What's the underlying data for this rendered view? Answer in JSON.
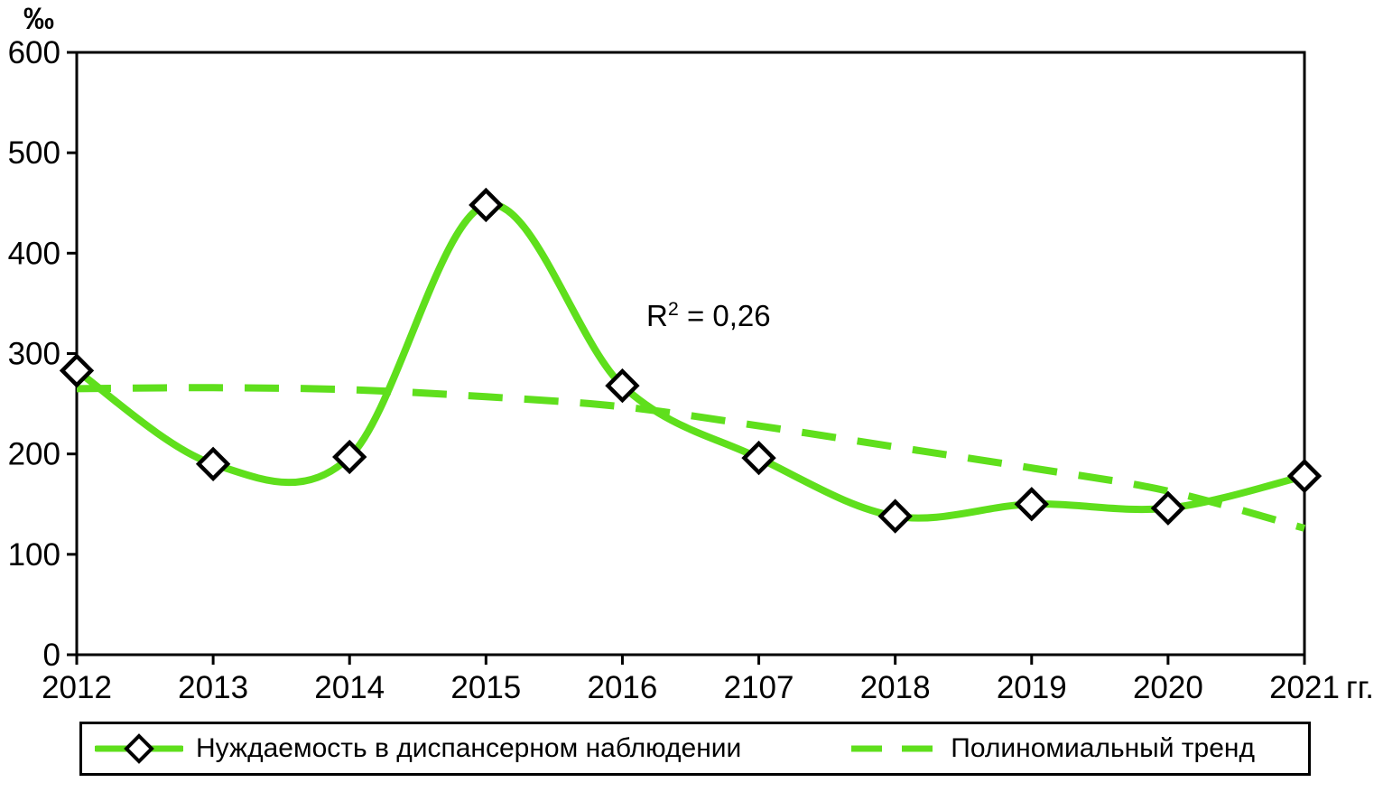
{
  "chart_data": {
    "type": "line",
    "title": "",
    "ylabel": "‰",
    "xlabel": "",
    "x_unit_suffix": "гг.",
    "categories": [
      "2012",
      "2013",
      "2014",
      "2015",
      "2016",
      "2107",
      "2018",
      "2019",
      "2020",
      "2021"
    ],
    "ylim": [
      0,
      600
    ],
    "yticks": [
      0,
      100,
      200,
      300,
      400,
      500,
      600
    ],
    "grid": "off",
    "legend_position": "bottom",
    "annotation": {
      "base": "R",
      "sup": "2",
      "rest": " = 0,26"
    },
    "series": [
      {
        "name": "Нуждаемость в диспансерном наблюдении",
        "style": "solid",
        "marker": "diamond",
        "values": [
          283,
          190,
          197,
          448,
          268,
          196,
          138,
          150,
          146,
          178
        ]
      },
      {
        "name": "Полиномиальный тренд",
        "style": "dashed",
        "marker": "none",
        "values": [
          265,
          266,
          264,
          257,
          247,
          228,
          207,
          186,
          163,
          126
        ]
      }
    ],
    "colors": {
      "series": "#5fdf1c",
      "marker_fill": "#ffffff",
      "marker_stroke": "#000000",
      "axis": "#000000"
    }
  }
}
